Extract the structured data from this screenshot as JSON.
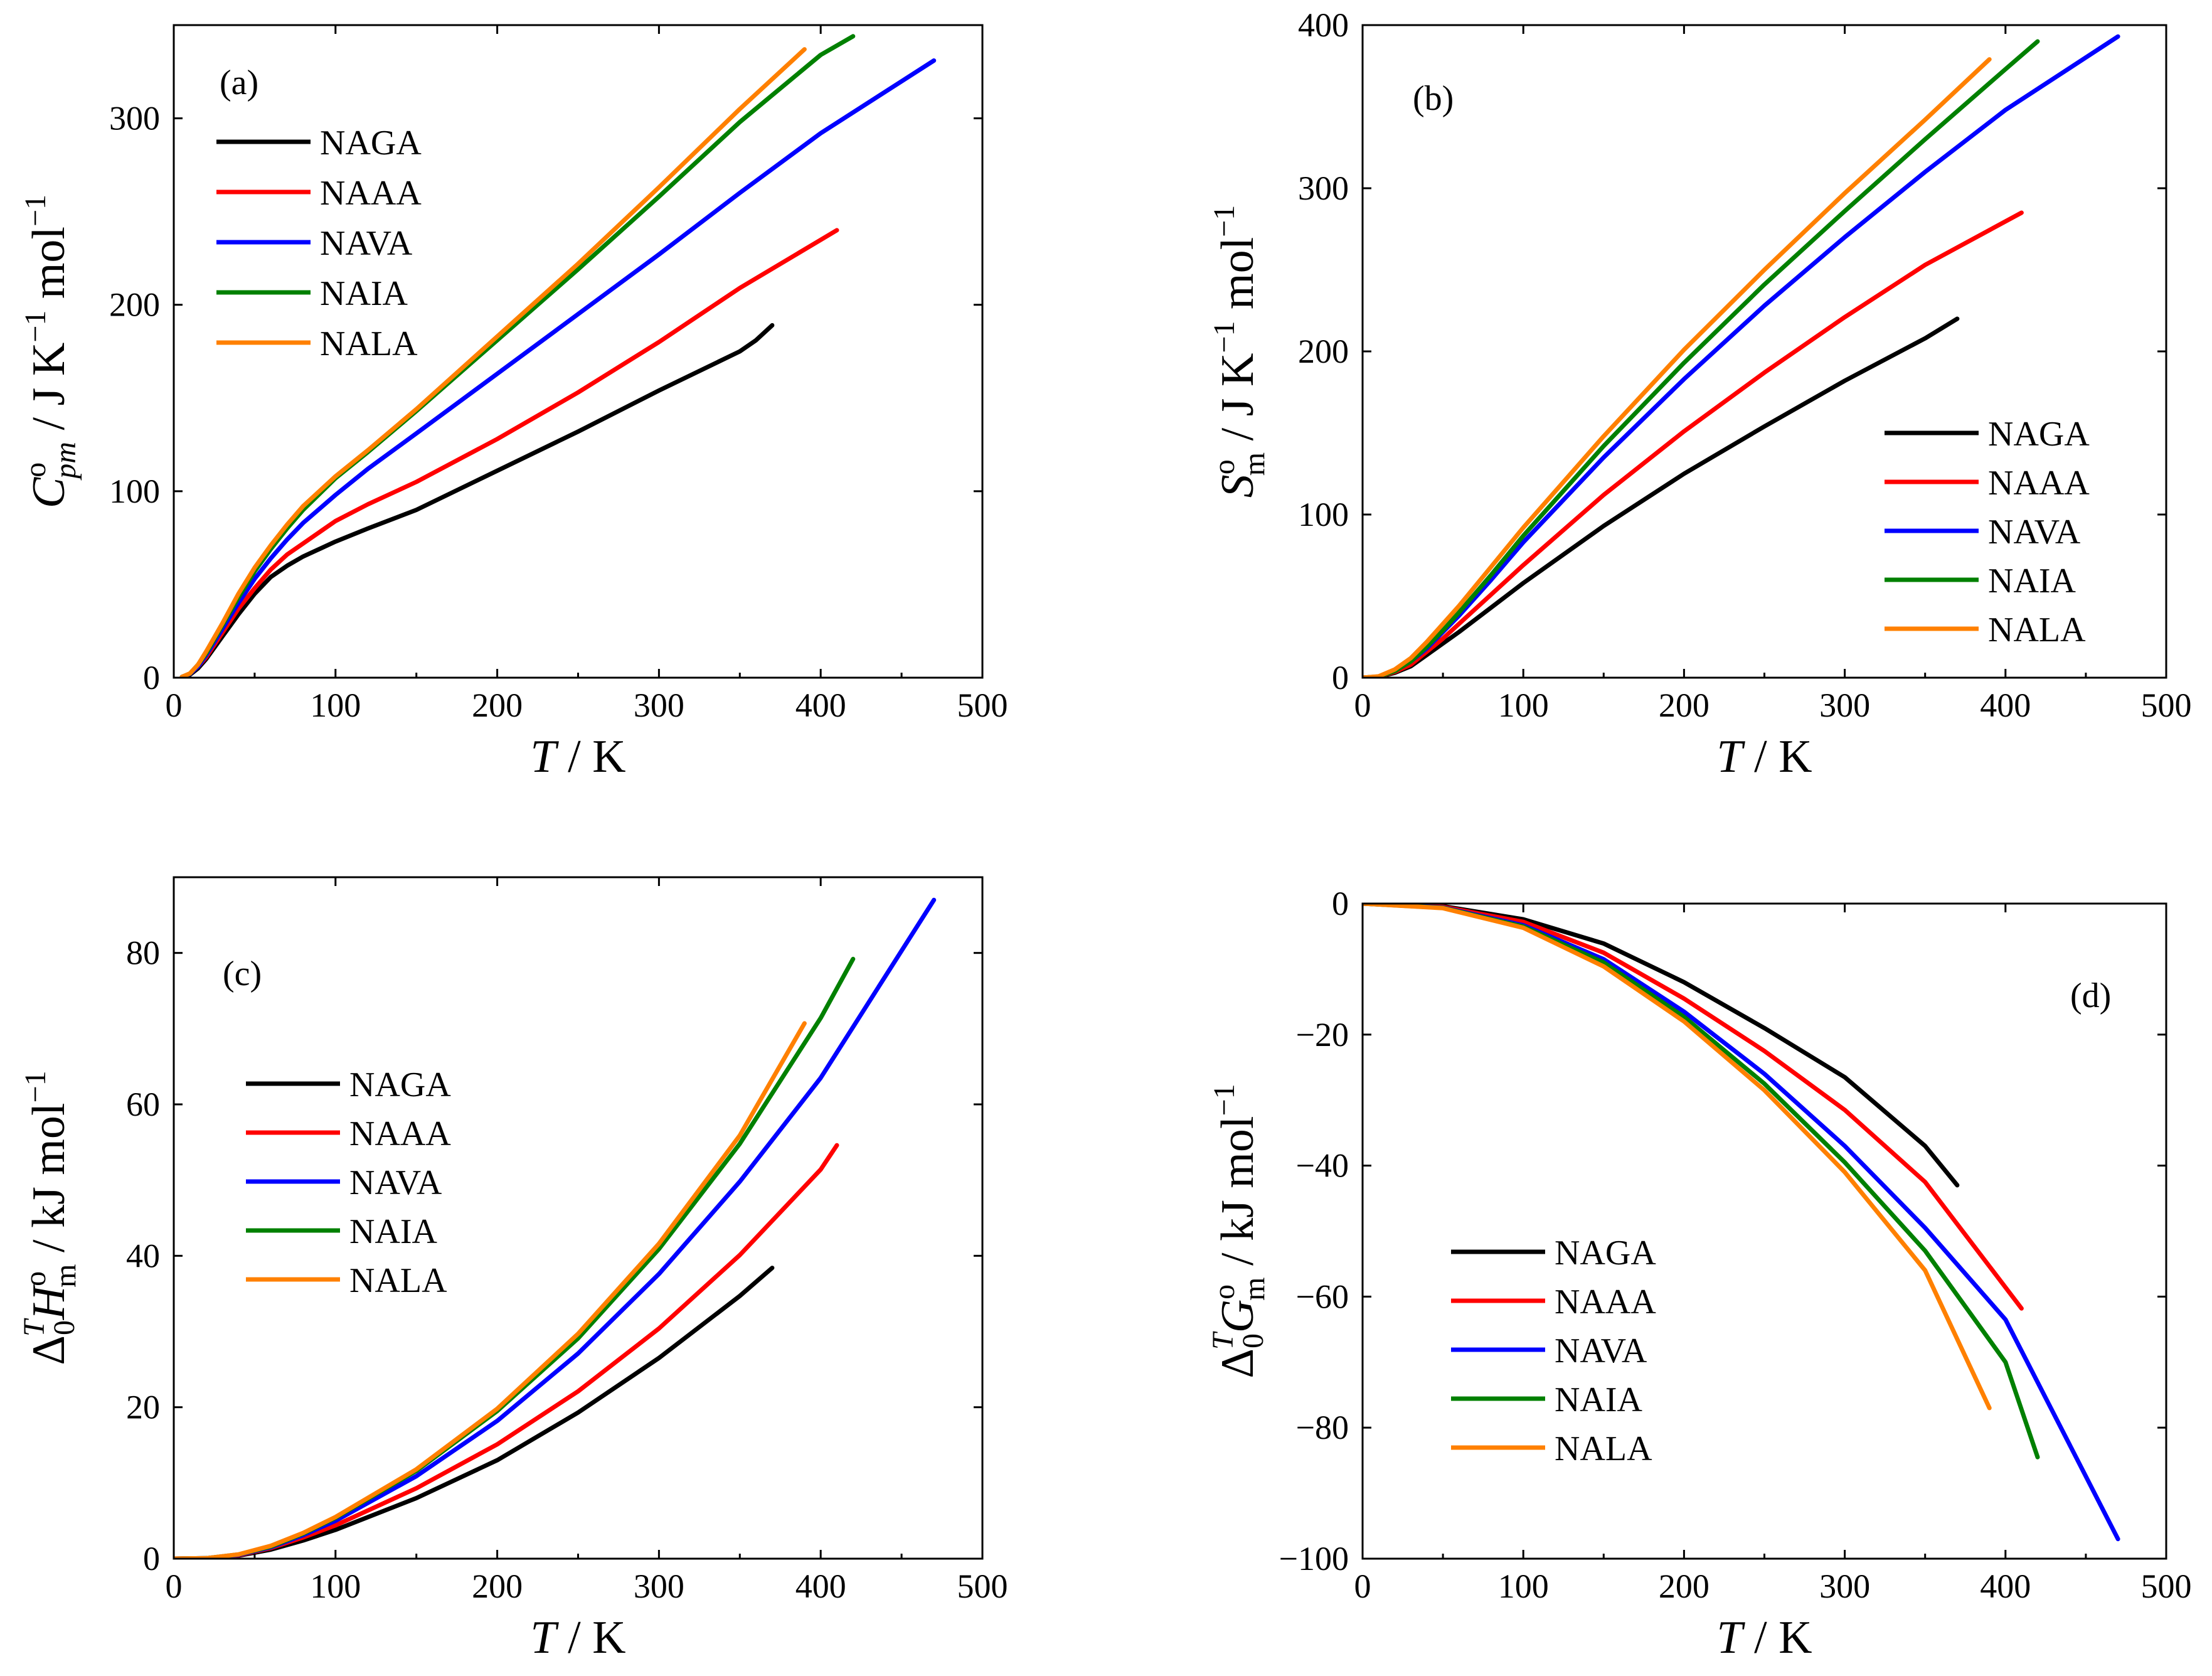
{
  "figure": {
    "colors": {
      "NAGA": "#000000",
      "NAAA": "#ff0000",
      "NAVA": "#0000ff",
      "NAIA": "#008000",
      "NALA": "#ff8000"
    }
  },
  "chart_data": [
    {
      "panel": "a",
      "type": "line",
      "panel_label": "(a)",
      "xlabel": {
        "symbol": "T",
        "unit": " / K"
      },
      "ylabel": {
        "symbol": "C",
        "superscript": "o",
        "subscript": "pm",
        "unit": " / J K",
        "unit_sup": "−1",
        "unit_tail": " mol",
        "unit_tail_sup": "−1"
      },
      "xlim": [
        0,
        500
      ],
      "ylim": [
        0,
        350
      ],
      "xticks": [
        0,
        100,
        200,
        300,
        400,
        500
      ],
      "yticks": [
        0,
        100,
        200,
        300
      ],
      "legend_position": "top-left",
      "series": [
        {
          "name": "NAGA",
          "x": [
            5,
            10,
            15,
            20,
            30,
            40,
            50,
            60,
            70,
            80,
            100,
            120,
            150,
            200,
            250,
            300,
            350,
            360,
            370
          ],
          "y": [
            0.3,
            1.6,
            5,
            10,
            22,
            34,
            45,
            54,
            60,
            65,
            73,
            80,
            90,
            111,
            132,
            154,
            175,
            181,
            189
          ]
        },
        {
          "name": "NAAA",
          "x": [
            5,
            10,
            15,
            20,
            30,
            40,
            50,
            60,
            70,
            80,
            100,
            120,
            150,
            200,
            250,
            300,
            350,
            410
          ],
          "y": [
            0.3,
            2,
            6,
            11,
            24,
            37,
            48,
            58,
            66,
            72,
            84,
            93,
            105,
            128,
            153,
            180,
            209,
            240
          ]
        },
        {
          "name": "NAVA",
          "x": [
            5,
            10,
            15,
            20,
            30,
            40,
            50,
            60,
            70,
            80,
            100,
            120,
            150,
            200,
            250,
            300,
            350,
            400,
            470
          ],
          "y": [
            0.4,
            2,
            6,
            12,
            26,
            40,
            53,
            64,
            74,
            83,
            98,
            112,
            131,
            163,
            195,
            227,
            260,
            292,
            331
          ]
        },
        {
          "name": "NAIA",
          "x": [
            5,
            10,
            15,
            20,
            30,
            40,
            50,
            60,
            70,
            80,
            100,
            120,
            150,
            200,
            250,
            300,
            350,
            400,
            420
          ],
          "y": [
            0.4,
            2.2,
            7,
            13,
            28,
            43,
            57,
            69,
            80,
            90,
            107,
            121,
            143,
            181,
            219,
            258,
            298,
            334,
            344
          ]
        },
        {
          "name": "NALA",
          "x": [
            5,
            10,
            15,
            20,
            30,
            40,
            50,
            60,
            70,
            80,
            100,
            120,
            150,
            200,
            250,
            300,
            350,
            390
          ],
          "y": [
            0.4,
            2.3,
            7,
            14,
            29,
            45,
            59,
            71,
            82,
            92,
            108,
            122,
            144,
            183,
            222,
            263,
            305,
            337
          ]
        }
      ]
    },
    {
      "panel": "b",
      "type": "line",
      "panel_label": "(b)",
      "xlabel": {
        "symbol": "T",
        "unit": " / K"
      },
      "ylabel": {
        "symbol": "S",
        "superscript": "o",
        "subscript": "m",
        "unit": " / J K",
        "unit_sup": "−1",
        "unit_tail": " mol",
        "unit_tail_sup": "−1"
      },
      "xlim": [
        0,
        500
      ],
      "ylim": [
        0,
        400
      ],
      "xticks": [
        0,
        100,
        200,
        300,
        400,
        500
      ],
      "yticks": [
        0,
        100,
        200,
        300,
        400
      ],
      "legend_position": "bottom-right",
      "series": [
        {
          "name": "NAGA",
          "x": [
            0,
            10,
            20,
            30,
            40,
            50,
            60,
            80,
            100,
            150,
            200,
            250,
            300,
            350,
            370
          ],
          "y": [
            0,
            0.5,
            3,
            7,
            14,
            21,
            28,
            43,
            58,
            93,
            125,
            154,
            182,
            208,
            220
          ]
        },
        {
          "name": "NAAA",
          "x": [
            0,
            10,
            20,
            30,
            40,
            50,
            60,
            80,
            100,
            150,
            200,
            250,
            300,
            350,
            410
          ],
          "y": [
            0,
            0.6,
            3.5,
            8,
            16,
            24,
            33,
            51,
            69,
            112,
            151,
            187,
            221,
            253,
            285
          ]
        },
        {
          "name": "NAVA",
          "x": [
            0,
            10,
            20,
            30,
            40,
            50,
            60,
            80,
            100,
            150,
            200,
            250,
            300,
            350,
            400,
            470
          ],
          "y": [
            0,
            0.7,
            4,
            10,
            18,
            28,
            38,
            60,
            83,
            135,
            183,
            228,
            270,
            310,
            348,
            393
          ]
        },
        {
          "name": "NAIA",
          "x": [
            0,
            10,
            20,
            30,
            40,
            50,
            60,
            80,
            100,
            150,
            200,
            250,
            300,
            350,
            400,
            420
          ],
          "y": [
            0,
            0.7,
            4,
            10,
            19,
            29,
            40,
            63,
            87,
            142,
            193,
            241,
            286,
            330,
            373,
            390
          ]
        },
        {
          "name": "NALA",
          "x": [
            0,
            10,
            20,
            30,
            40,
            50,
            60,
            80,
            100,
            150,
            200,
            250,
            300,
            350,
            390
          ],
          "y": [
            0,
            0.8,
            5,
            12,
            22,
            33,
            44,
            68,
            92,
            148,
            201,
            250,
            297,
            342,
            379
          ]
        }
      ]
    },
    {
      "panel": "c",
      "type": "line",
      "panel_label": "(c)",
      "xlabel": {
        "symbol": "T",
        "unit": " / K"
      },
      "ylabel": {
        "prefix": "Δ",
        "prefix_sub": "0",
        "prefix_sup": "T",
        "symbol": "H",
        "superscript": "o",
        "subscript": "m",
        "unit": " / kJ mol",
        "unit_sup": "−1"
      },
      "xlim": [
        0,
        500
      ],
      "ylim": [
        0,
        90
      ],
      "xticks": [
        0,
        100,
        200,
        300,
        400,
        500
      ],
      "yticks": [
        0,
        20,
        40,
        60,
        80
      ],
      "legend_position": "center-left",
      "series": [
        {
          "name": "NAGA",
          "x": [
            0,
            20,
            40,
            60,
            80,
            100,
            150,
            200,
            250,
            300,
            350,
            370
          ],
          "y": [
            0,
            0.05,
            0.4,
            1.2,
            2.4,
            3.8,
            8.0,
            13.0,
            19.3,
            26.5,
            34.7,
            38.4
          ]
        },
        {
          "name": "NAAA",
          "x": [
            0,
            20,
            40,
            60,
            80,
            100,
            150,
            200,
            250,
            300,
            350,
            400,
            410
          ],
          "y": [
            0,
            0.05,
            0.45,
            1.4,
            2.8,
            4.4,
            9.3,
            15.1,
            22.1,
            30.4,
            40.1,
            51.4,
            54.6
          ]
        },
        {
          "name": "NAVA",
          "x": [
            0,
            20,
            40,
            60,
            80,
            100,
            150,
            200,
            250,
            300,
            350,
            400,
            470
          ],
          "y": [
            0,
            0.06,
            0.5,
            1.5,
            3.1,
            5.0,
            10.9,
            18.2,
            27.1,
            37.6,
            49.8,
            63.5,
            87.0
          ]
        },
        {
          "name": "NAIA",
          "x": [
            0,
            20,
            40,
            60,
            80,
            100,
            150,
            200,
            250,
            300,
            350,
            400,
            420
          ],
          "y": [
            0,
            0.06,
            0.55,
            1.6,
            3.3,
            5.4,
            11.6,
            19.5,
            29.1,
            40.9,
            54.8,
            71.4,
            79.2
          ]
        },
        {
          "name": "NALA",
          "x": [
            0,
            20,
            40,
            60,
            80,
            100,
            150,
            200,
            250,
            300,
            350,
            390
          ],
          "y": [
            0,
            0.06,
            0.56,
            1.7,
            3.4,
            5.5,
            11.8,
            19.8,
            29.7,
            41.6,
            55.9,
            70.7
          ]
        }
      ]
    },
    {
      "panel": "d",
      "type": "line",
      "panel_label": "(d)",
      "xlabel": {
        "symbol": "T",
        "unit": " / K"
      },
      "ylabel": {
        "prefix": "Δ",
        "prefix_sub": "0",
        "prefix_sup": "T",
        "symbol": "G",
        "superscript": "o",
        "subscript": "m",
        "unit": " / kJ mol",
        "unit_sup": "−1"
      },
      "xlim": [
        0,
        500
      ],
      "ylim": [
        -100,
        0
      ],
      "xticks": [
        0,
        100,
        200,
        300,
        400,
        500
      ],
      "yticks": [
        0,
        -20,
        -40,
        -60,
        -80,
        -100
      ],
      "ytick_labels": [
        "0",
        "−20",
        "−40",
        "−60",
        "−80",
        "−100"
      ],
      "legend_position": "bottom-left",
      "series": [
        {
          "name": "NAGA",
          "x": [
            0,
            50,
            100,
            150,
            200,
            250,
            300,
            350,
            370
          ],
          "y": [
            0,
            -0.4,
            -2.4,
            -6.1,
            -12.0,
            -19.0,
            -26.5,
            -37.0,
            -43.0
          ]
        },
        {
          "name": "NAAA",
          "x": [
            0,
            50,
            100,
            150,
            200,
            250,
            300,
            350,
            410
          ],
          "y": [
            0,
            -0.5,
            -2.8,
            -7.5,
            -14.5,
            -22.5,
            -31.5,
            -42.5,
            -61.8
          ]
        },
        {
          "name": "NAVA",
          "x": [
            0,
            50,
            100,
            150,
            200,
            250,
            300,
            350,
            400,
            470
          ],
          "y": [
            0,
            -0.6,
            -3.3,
            -8.5,
            -16.5,
            -26.0,
            -37.0,
            -49.5,
            -63.5,
            -97.0
          ]
        },
        {
          "name": "NAIA",
          "x": [
            0,
            50,
            100,
            150,
            200,
            250,
            300,
            350,
            400,
            420
          ],
          "y": [
            0,
            -0.65,
            -3.5,
            -9.0,
            -17.3,
            -27.5,
            -39.5,
            -53.0,
            -70.0,
            -84.5
          ]
        },
        {
          "name": "NALA",
          "x": [
            0,
            50,
            100,
            150,
            200,
            250,
            300,
            350,
            390
          ],
          "y": [
            0,
            -0.7,
            -3.7,
            -9.6,
            -18.0,
            -28.5,
            -41.0,
            -56.0,
            -77.0
          ]
        }
      ]
    }
  ]
}
